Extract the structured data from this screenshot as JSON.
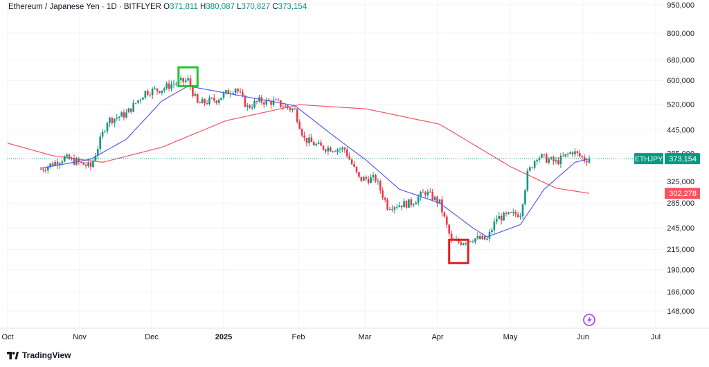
{
  "header": {
    "symbol_label": "Ethereum / Japanese Yen · 1D · BITFLYER",
    "open_key": "O",
    "open": "371,811",
    "high_key": "H",
    "high": "380,087",
    "low_key": "L",
    "low": "370,827",
    "close_key": "C",
    "close": "373,154"
  },
  "branding": {
    "name": "TradingView"
  },
  "colors": {
    "up": "#089981",
    "down": "#f23645",
    "ma_fast": "#5b5bf0",
    "ma_slow": "#f7525f",
    "grid": "#f0f3fa",
    "axis_text": "#131722",
    "highlight_high": "#22c22f",
    "highlight_low": "#e01e1e"
  },
  "chart_data": {
    "type": "candlestick",
    "title": "Ethereum / Japanese Yen · 1D · BITFLYER",
    "x_tick_labels": [
      "Oct",
      "Nov",
      "Dec",
      "2025",
      "Feb",
      "Mar",
      "Apr",
      "May",
      "Jun",
      "Jul"
    ],
    "y_tick_labels": [
      "950,000",
      "800,000",
      "680,000",
      "600,000",
      "520,000",
      "445,000",
      "385,000",
      "325,000",
      "285,000",
      "245,000",
      "215,000",
      "190,000",
      "166,000",
      "148,000"
    ],
    "y_ticks": [
      950000,
      800000,
      680000,
      600000,
      520000,
      445000,
      385000,
      325000,
      285000,
      245000,
      215000,
      190000,
      166000,
      148000
    ],
    "y_scale": "log",
    "ylim": [
      130000,
      1000000
    ],
    "price_label": {
      "symbol": "ETHJPY",
      "value": "373,154",
      "price": 373154
    },
    "ma_label": {
      "value": "302,278",
      "price": 302278
    },
    "anchors": [
      [
        "2024-10-15",
        350000
      ],
      [
        "2024-10-25",
        375000
      ],
      [
        "2024-11-05",
        355000
      ],
      [
        "2024-11-12",
        470000
      ],
      [
        "2024-11-20",
        490000
      ],
      [
        "2024-11-28",
        560000
      ],
      [
        "2024-12-05",
        570000
      ],
      [
        "2024-12-10",
        590000
      ],
      [
        "2024-12-16",
        600000
      ],
      [
        "2024-12-20",
        520000
      ],
      [
        "2024-12-28",
        535000
      ],
      [
        "2025-01-05",
        575000
      ],
      [
        "2025-01-10",
        510000
      ],
      [
        "2025-01-15",
        530000
      ],
      [
        "2025-01-22",
        525000
      ],
      [
        "2025-01-30",
        500000
      ],
      [
        "2025-02-03",
        420000
      ],
      [
        "2025-02-10",
        400000
      ],
      [
        "2025-02-20",
        395000
      ],
      [
        "2025-02-26",
        330000
      ],
      [
        "2025-03-05",
        330000
      ],
      [
        "2025-03-10",
        280000
      ],
      [
        "2025-03-20",
        285000
      ],
      [
        "2025-03-26",
        305000
      ],
      [
        "2025-04-01",
        285000
      ],
      [
        "2025-04-06",
        225000
      ],
      [
        "2025-04-10",
        225000
      ],
      [
        "2025-04-15",
        230000
      ],
      [
        "2025-04-21",
        228000
      ],
      [
        "2025-04-25",
        260000
      ],
      [
        "2025-05-05",
        268000
      ],
      [
        "2025-05-08",
        340000
      ],
      [
        "2025-05-12",
        380000
      ],
      [
        "2025-05-20",
        365000
      ],
      [
        "2025-05-27",
        390000
      ],
      [
        "2025-06-01",
        371811
      ],
      [
        "2025-06-03",
        373154
      ]
    ],
    "ma_fast_anchors": [
      [
        "2024-10-15",
        352000
      ],
      [
        "2024-11-05",
        372000
      ],
      [
        "2024-11-20",
        420000
      ],
      [
        "2024-12-05",
        530000
      ],
      [
        "2024-12-16",
        580000
      ],
      [
        "2025-01-05",
        550000
      ],
      [
        "2025-01-30",
        515000
      ],
      [
        "2025-02-15",
        430000
      ],
      [
        "2025-03-01",
        370000
      ],
      [
        "2025-03-15",
        310000
      ],
      [
        "2025-04-01",
        285000
      ],
      [
        "2025-04-15",
        245000
      ],
      [
        "2025-04-21",
        232000
      ],
      [
        "2025-05-05",
        250000
      ],
      [
        "2025-05-15",
        310000
      ],
      [
        "2025-05-28",
        365000
      ],
      [
        "2025-06-03",
        373000
      ]
    ],
    "ma_slow_anchors": [
      [
        "2024-10-01",
        410000
      ],
      [
        "2024-10-20",
        380000
      ],
      [
        "2024-11-10",
        365000
      ],
      [
        "2024-12-05",
        400000
      ],
      [
        "2025-01-01",
        470000
      ],
      [
        "2025-02-01",
        518000
      ],
      [
        "2025-03-01",
        505000
      ],
      [
        "2025-04-01",
        460000
      ],
      [
        "2025-05-01",
        355000
      ],
      [
        "2025-05-20",
        312000
      ],
      [
        "2025-06-03",
        302278
      ]
    ],
    "highlights": [
      {
        "kind": "high",
        "from": "2024-12-12",
        "to": "2024-12-20",
        "low": 580000,
        "high": 650000
      },
      {
        "kind": "low",
        "from": "2025-04-05",
        "to": "2025-04-13",
        "low": 198000,
        "high": 228000
      }
    ]
  }
}
